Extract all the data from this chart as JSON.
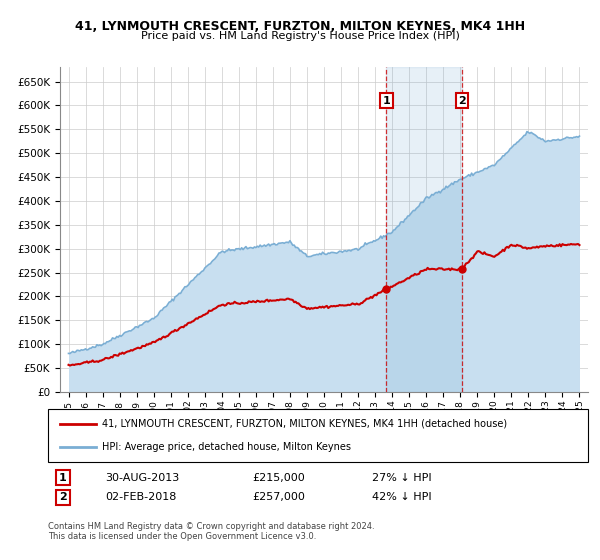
{
  "title": "41, LYNMOUTH CRESCENT, FURZTON, MILTON KEYNES, MK4 1HH",
  "subtitle": "Price paid vs. HM Land Registry's House Price Index (HPI)",
  "legend_line1": "41, LYNMOUTH CRESCENT, FURZTON, MILTON KEYNES, MK4 1HH (detached house)",
  "legend_line2": "HPI: Average price, detached house, Milton Keynes",
  "annotation1_label": "1",
  "annotation1_date": "30-AUG-2013",
  "annotation1_price": "£215,000",
  "annotation1_pct": "27% ↓ HPI",
  "annotation2_label": "2",
  "annotation2_date": "02-FEB-2018",
  "annotation2_price": "£257,000",
  "annotation2_pct": "42% ↓ HPI",
  "footnote": "Contains HM Land Registry data © Crown copyright and database right 2024.\nThis data is licensed under the Open Government Licence v3.0.",
  "hpi_color": "#7aaed4",
  "hpi_fill": "#c8dff0",
  "price_color": "#cc0000",
  "annotation_box_color": "#cc0000",
  "ylim": [
    0,
    680000
  ],
  "yticks": [
    0,
    50000,
    100000,
    150000,
    200000,
    250000,
    300000,
    350000,
    400000,
    450000,
    500000,
    550000,
    600000,
    650000
  ],
  "sale1_year": 2013.667,
  "sale1_price": 215000,
  "sale2_year": 2018.083,
  "sale2_price": 257000,
  "xlim_left": 1994.5,
  "xlim_right": 2025.5
}
